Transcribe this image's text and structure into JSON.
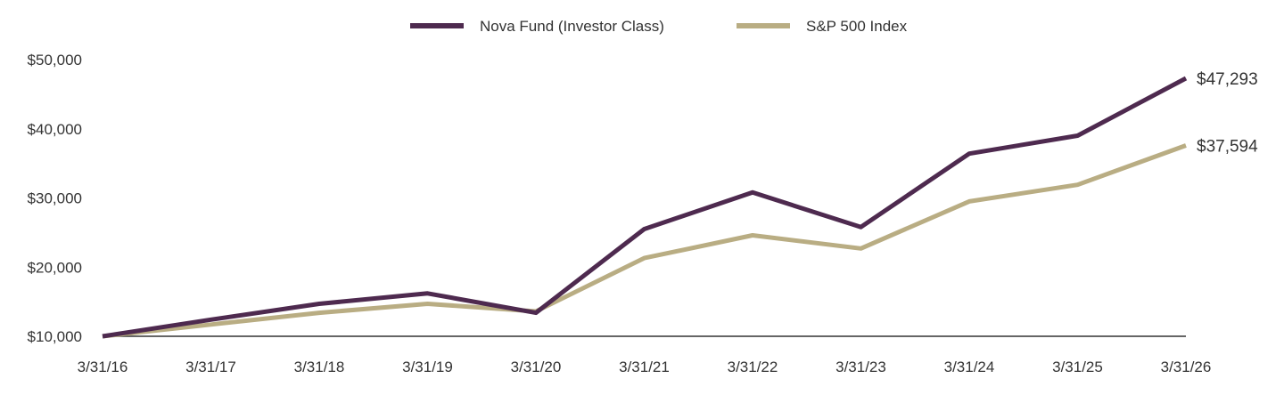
{
  "chart_data": {
    "type": "line",
    "x": [
      "3/31/16",
      "3/31/17",
      "3/31/18",
      "3/31/19",
      "3/31/20",
      "3/31/21",
      "3/31/22",
      "3/31/23",
      "3/31/24",
      "3/31/25",
      "3/31/26"
    ],
    "series": [
      {
        "name": "Nova Fund (Investor Class)",
        "color": "#4e2a4f",
        "values": [
          10000,
          12400,
          14700,
          16200,
          13400,
          25500,
          30800,
          25800,
          36400,
          39000,
          47293
        ],
        "end_label": "$47,293"
      },
      {
        "name": "S&P 500 Index",
        "color": "#b9ad83",
        "values": [
          10000,
          11700,
          13400,
          14700,
          13600,
          21300,
          24600,
          22700,
          29500,
          31900,
          37594
        ],
        "end_label": "$37,594"
      }
    ],
    "ylim": [
      10000,
      50000
    ],
    "yticks": [
      {
        "value": 10000,
        "label": "$10,000"
      },
      {
        "value": 20000,
        "label": "$20,000"
      },
      {
        "value": 30000,
        "label": "$30,000"
      },
      {
        "value": 40000,
        "label": "$40,000"
      },
      {
        "value": 50000,
        "label": "$50,000"
      }
    ],
    "grid": false,
    "legend_position": "top-center"
  }
}
